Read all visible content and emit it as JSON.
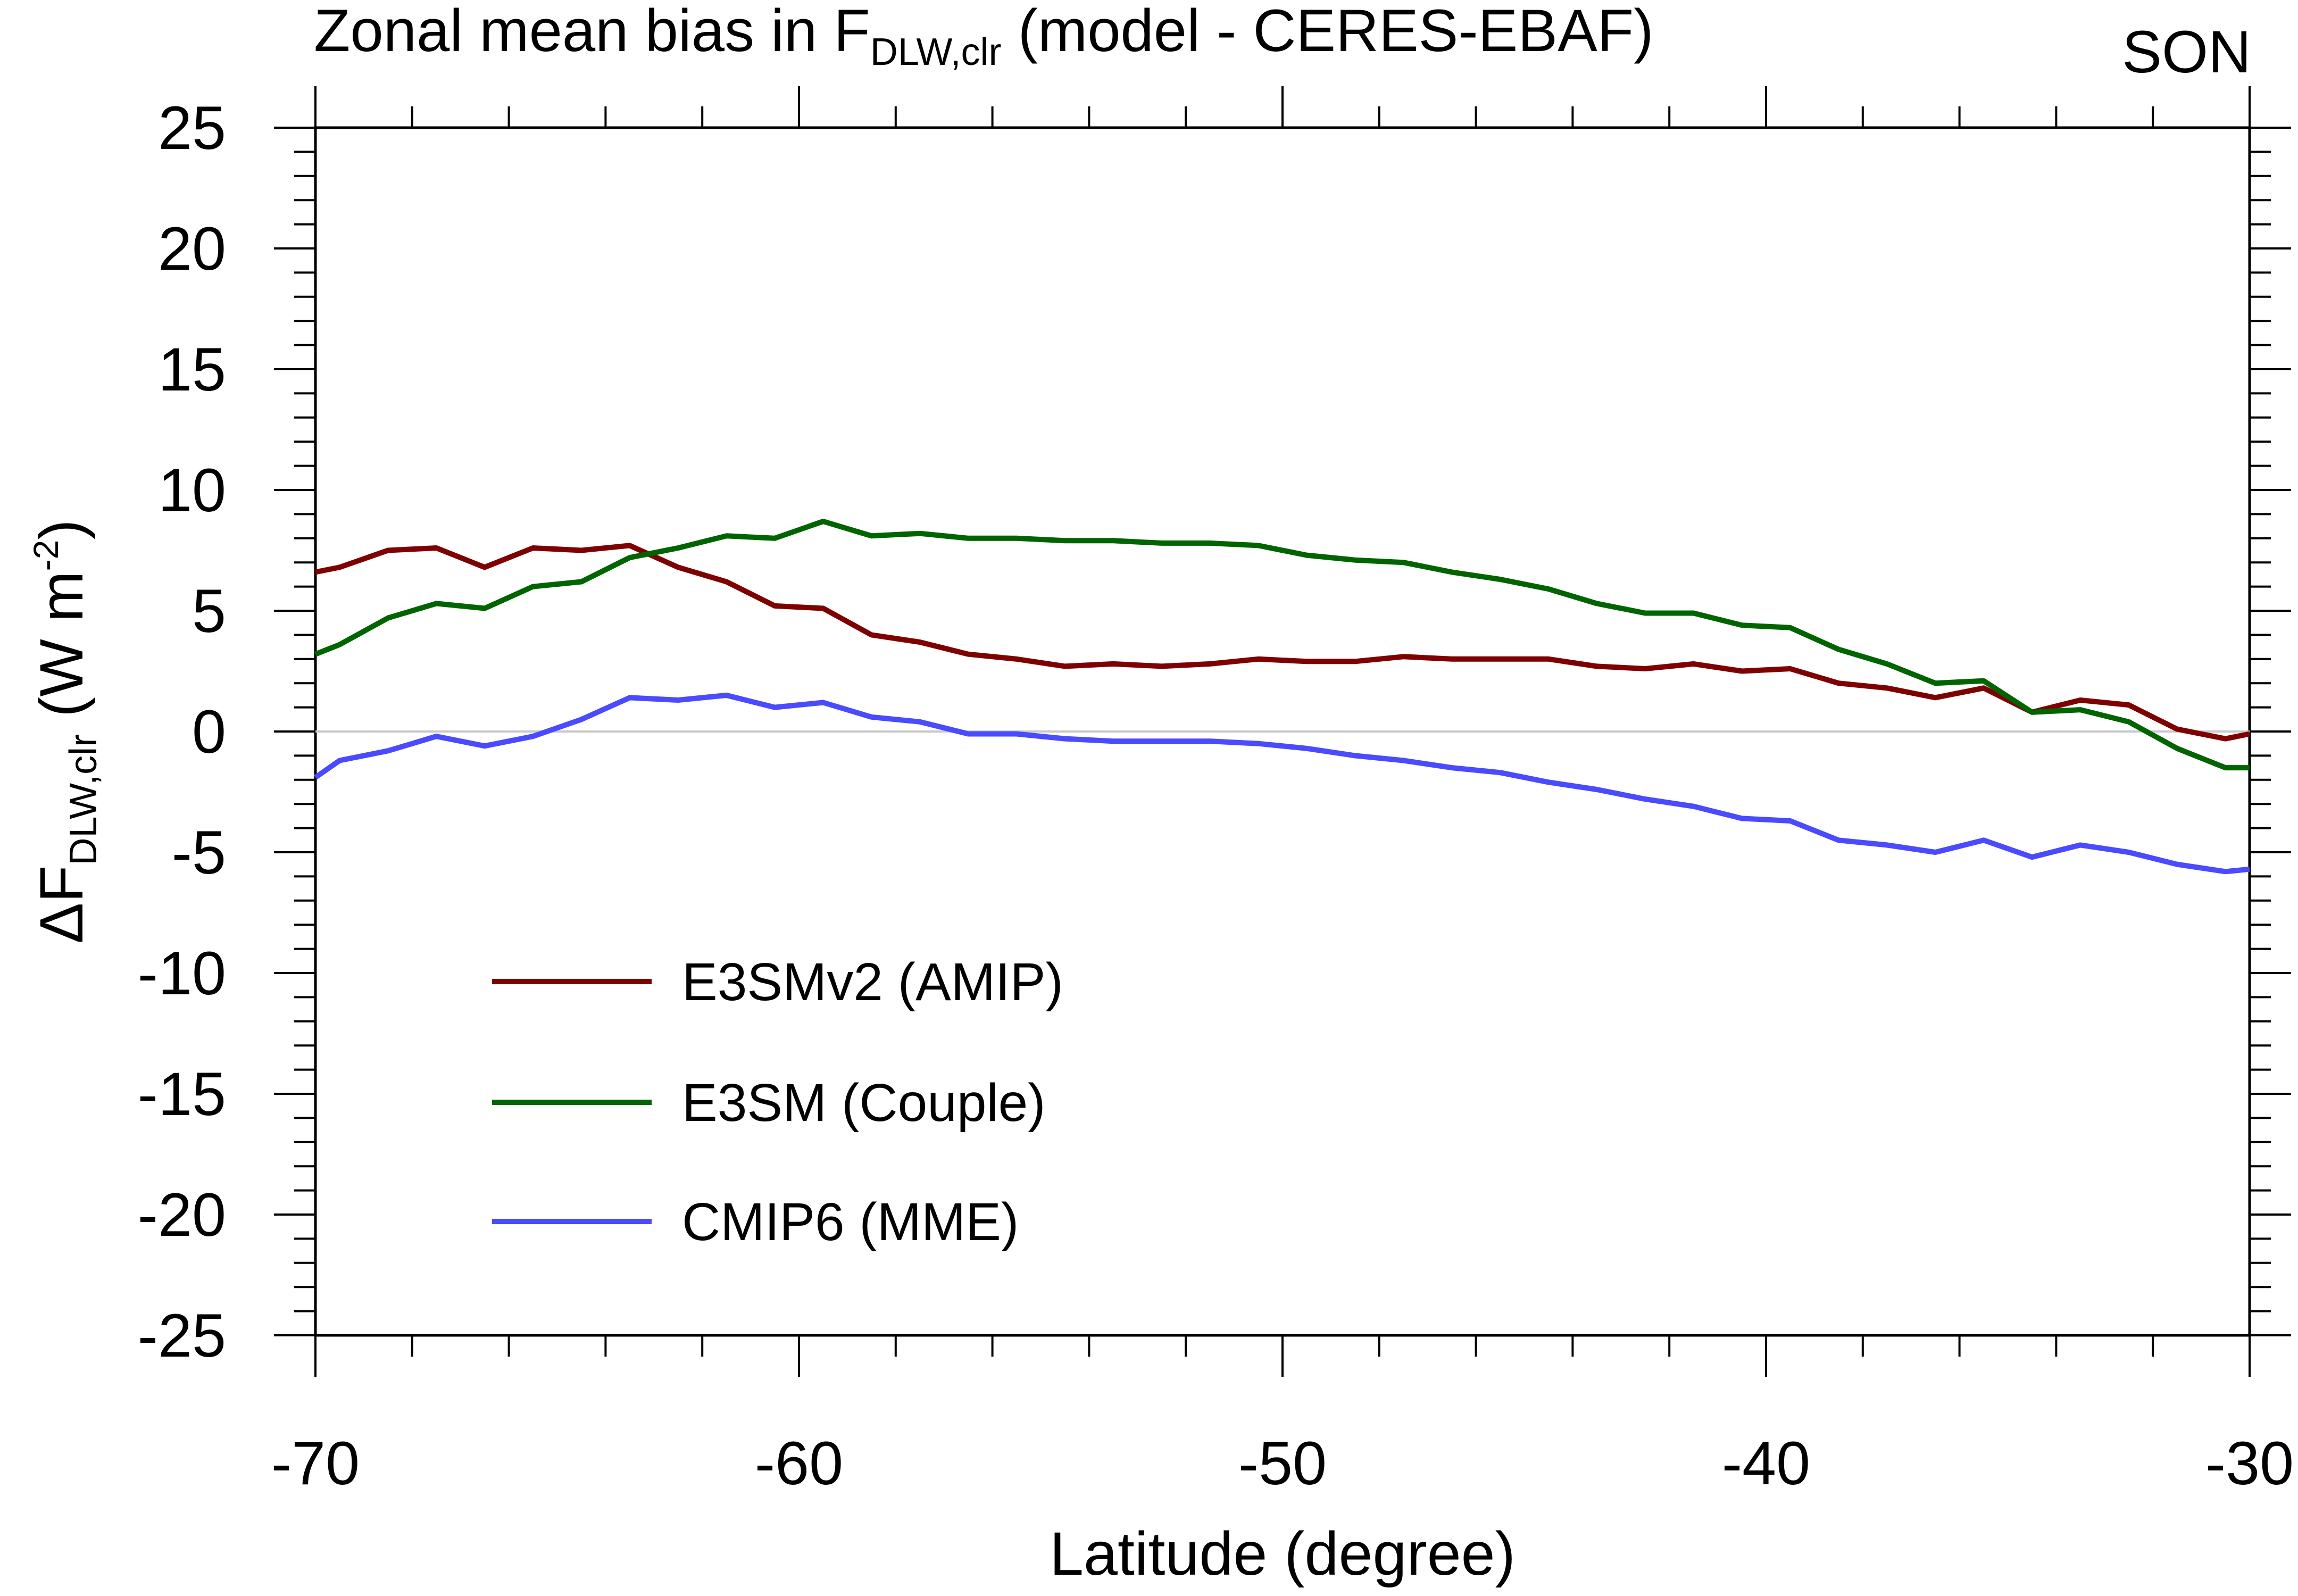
{
  "colors": {
    "amip": "#7f0000",
    "couple": "#006400",
    "mme": "#4a4aff",
    "zero_line": "#c8c8c8",
    "axis": "#000000"
  },
  "chart_data": {
    "type": "line",
    "title": {
      "prefix": "Zonal mean bias in F",
      "subscript": "DLW,clr",
      "suffix": " (model - CERES-EBAF)"
    },
    "season": "SON",
    "xlabel": "Latitude (degree)",
    "ylabel": {
      "prefix": "ΔF",
      "subscript": "DLW,clr",
      "units_prefix": " (W m",
      "units_superscript": "-2",
      "units_suffix": ")"
    },
    "xlim": [
      -70,
      -30
    ],
    "ylim": [
      -25,
      25
    ],
    "xticks": [
      -70,
      -60,
      -50,
      -40,
      -30
    ],
    "xtick_labels": [
      "-70",
      "-60",
      "-50",
      "-40",
      "-30"
    ],
    "yticks": [
      25,
      20,
      15,
      10,
      5,
      0,
      -5,
      -10,
      -15,
      -20,
      -25
    ],
    "ytick_labels": [
      "25",
      "20",
      "15",
      "10",
      "5",
      "0",
      "-5",
      "-10",
      "-15",
      "-20",
      "-25"
    ],
    "x": [
      -70,
      -69.5,
      -68.5,
      -67.5,
      -66.5,
      -65.5,
      -64.5,
      -63.5,
      -62.5,
      -61.5,
      -60.5,
      -59.5,
      -58.5,
      -57.5,
      -56.5,
      -55.5,
      -54.5,
      -53.5,
      -52.5,
      -51.5,
      -50.5,
      -49.5,
      -48.5,
      -47.5,
      -46.5,
      -45.5,
      -44.5,
      -43.5,
      -42.5,
      -41.5,
      -40.5,
      -39.5,
      -38.5,
      -37.5,
      -36.5,
      -35.5,
      -34.5,
      -33.5,
      -32.5,
      -31.5,
      -30.5,
      -30
    ],
    "series": [
      {
        "name": "E3SMv2 (AMIP)",
        "color_key": "amip",
        "values": [
          6.6,
          6.8,
          7.5,
          7.6,
          6.8,
          7.6,
          7.5,
          7.7,
          6.8,
          6.2,
          5.2,
          5.1,
          4.0,
          3.7,
          3.2,
          3.0,
          2.7,
          2.8,
          2.7,
          2.8,
          3.0,
          2.9,
          2.9,
          3.1,
          3.0,
          3.0,
          3.0,
          2.7,
          2.6,
          2.8,
          2.5,
          2.6,
          2.0,
          1.8,
          1.4,
          1.8,
          0.8,
          1.3,
          1.1,
          0.1,
          -0.3,
          -0.1
        ]
      },
      {
        "name": "E3SM (Couple)",
        "color_key": "couple",
        "values": [
          3.2,
          3.6,
          4.7,
          5.3,
          5.1,
          6.0,
          6.2,
          7.2,
          7.6,
          8.1,
          8.0,
          8.7,
          8.1,
          8.2,
          8.0,
          8.0,
          7.9,
          7.9,
          7.8,
          7.8,
          7.7,
          7.3,
          7.1,
          7.0,
          6.6,
          6.3,
          5.9,
          5.3,
          4.9,
          4.9,
          4.4,
          4.3,
          3.4,
          2.8,
          2.0,
          2.1,
          0.8,
          0.9,
          0.4,
          -0.7,
          -1.5,
          -1.5
        ]
      },
      {
        "name": "CMIP6 (MME)",
        "color_key": "mme",
        "values": [
          -1.9,
          -1.2,
          -0.8,
          -0.2,
          -0.6,
          -0.2,
          0.5,
          1.4,
          1.3,
          1.5,
          1.0,
          1.2,
          0.6,
          0.4,
          -0.1,
          -0.1,
          -0.3,
          -0.4,
          -0.4,
          -0.4,
          -0.5,
          -0.7,
          -1.0,
          -1.2,
          -1.5,
          -1.7,
          -2.1,
          -2.4,
          -2.8,
          -3.1,
          -3.6,
          -3.7,
          -4.5,
          -4.7,
          -5.0,
          -4.5,
          -5.2,
          -4.7,
          -5.0,
          -5.5,
          -5.8,
          -5.7
        ]
      }
    ],
    "legend_position": "lower-left"
  }
}
